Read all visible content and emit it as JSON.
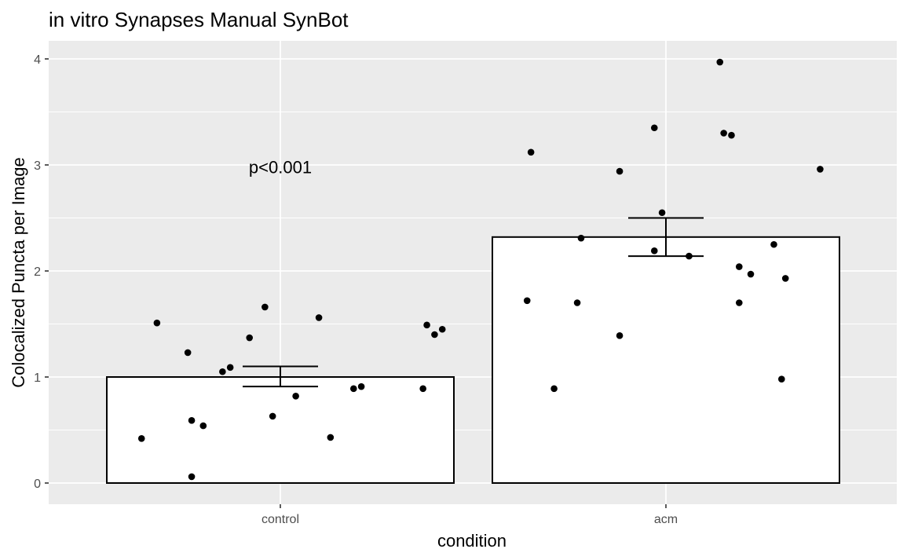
{
  "chart_data": {
    "type": "bar",
    "title": "in vitro Synapses Manual SynBot",
    "xlabel": "condition",
    "ylabel": "Colocalized Puncta per Image",
    "categories": [
      "control",
      "acm"
    ],
    "values": [
      1.0,
      2.32
    ],
    "error_bars": [
      {
        "lower": 0.91,
        "upper": 1.1
      },
      {
        "lower": 2.14,
        "upper": 2.5
      }
    ],
    "points": [
      [
        {
          "jitter": -0.36,
          "y": 0.42
        },
        {
          "jitter": -0.32,
          "y": 1.51
        },
        {
          "jitter": -0.24,
          "y": 1.23
        },
        {
          "jitter": -0.23,
          "y": 0.59
        },
        {
          "jitter": -0.23,
          "y": 0.06
        },
        {
          "jitter": -0.2,
          "y": 0.54
        },
        {
          "jitter": -0.15,
          "y": 1.05
        },
        {
          "jitter": -0.13,
          "y": 1.09
        },
        {
          "jitter": -0.08,
          "y": 1.37
        },
        {
          "jitter": -0.04,
          "y": 1.66
        },
        {
          "jitter": -0.02,
          "y": 0.63
        },
        {
          "jitter": 0.04,
          "y": 0.82
        },
        {
          "jitter": 0.1,
          "y": 1.56
        },
        {
          "jitter": 0.13,
          "y": 0.43
        },
        {
          "jitter": 0.19,
          "y": 0.89
        },
        {
          "jitter": 0.21,
          "y": 0.91
        },
        {
          "jitter": 0.37,
          "y": 0.89
        },
        {
          "jitter": 0.38,
          "y": 1.49
        },
        {
          "jitter": 0.4,
          "y": 1.4
        },
        {
          "jitter": 0.42,
          "y": 1.45
        }
      ],
      [
        {
          "jitter": -0.36,
          "y": 1.72
        },
        {
          "jitter": -0.35,
          "y": 3.12
        },
        {
          "jitter": -0.29,
          "y": 0.89
        },
        {
          "jitter": -0.23,
          "y": 1.7
        },
        {
          "jitter": -0.22,
          "y": 2.31
        },
        {
          "jitter": -0.12,
          "y": 1.39
        },
        {
          "jitter": -0.12,
          "y": 2.94
        },
        {
          "jitter": -0.03,
          "y": 3.35
        },
        {
          "jitter": -0.03,
          "y": 2.19
        },
        {
          "jitter": -0.01,
          "y": 2.55
        },
        {
          "jitter": 0.06,
          "y": 2.14
        },
        {
          "jitter": 0.14,
          "y": 3.97
        },
        {
          "jitter": 0.15,
          "y": 3.3
        },
        {
          "jitter": 0.17,
          "y": 3.28
        },
        {
          "jitter": 0.19,
          "y": 2.04
        },
        {
          "jitter": 0.19,
          "y": 1.7
        },
        {
          "jitter": 0.22,
          "y": 1.97
        },
        {
          "jitter": 0.28,
          "y": 2.25
        },
        {
          "jitter": 0.3,
          "y": 0.98
        },
        {
          "jitter": 0.31,
          "y": 1.93
        },
        {
          "jitter": 0.4,
          "y": 2.96
        }
      ]
    ],
    "annotations": [
      {
        "text": "p<0.001",
        "category": "control",
        "y": 2.98
      }
    ],
    "yticks": [
      "0",
      "1",
      "2",
      "3",
      "4"
    ],
    "ylim": [
      -0.2,
      4.1
    ],
    "grid": true,
    "colors": {
      "panel_background": "#ebebeb",
      "grid": "#ffffff",
      "bar_fill": "#ffffff",
      "bar_outline": "#000000",
      "point": "#000000",
      "tick_text": "#4d4d4d"
    }
  }
}
